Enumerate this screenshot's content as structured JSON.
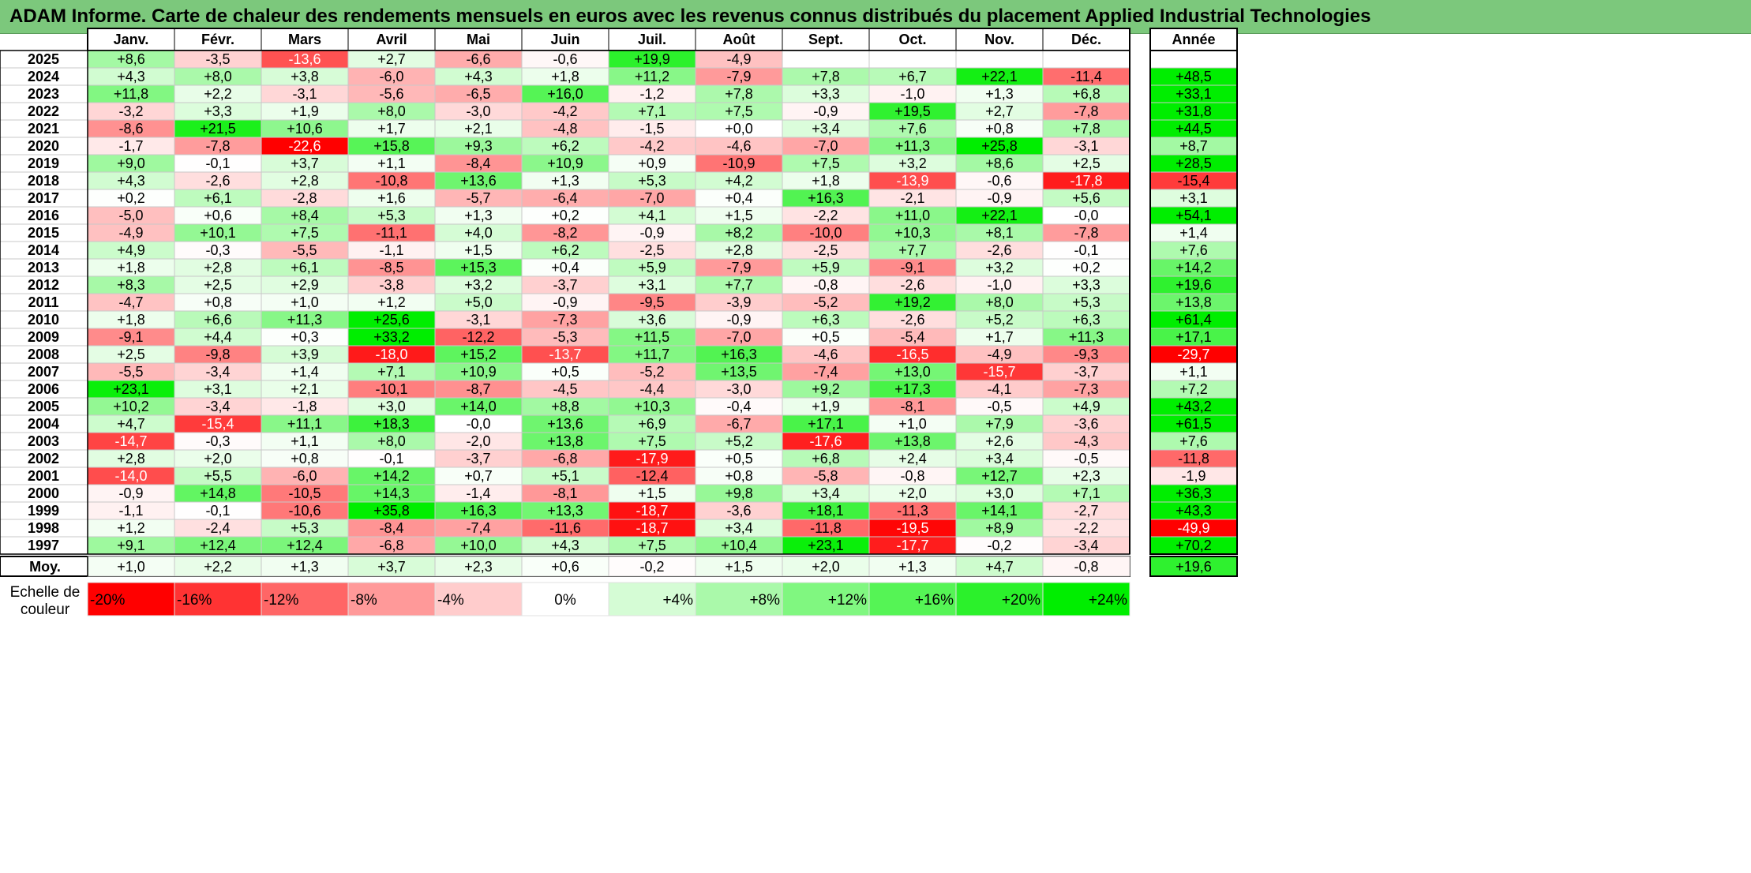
{
  "title": "ADAM Informe. Carte de chaleur des rendements mensuels en euros avec les revenus connus distribués du placement Applied Industrial Technologies",
  "chart_data": {
    "type": "heatmap",
    "months": [
      "Janv.",
      "Févr.",
      "Mars",
      "Avril",
      "Mai",
      "Juin",
      "Juil.",
      "Août",
      "Sept.",
      "Oct.",
      "Nov.",
      "Déc."
    ],
    "year_header": "Année",
    "avg_label": "Moy.",
    "scale_label": "Echelle de couleur",
    "scale": [
      "-20%",
      "-16%",
      "-12%",
      "-8%",
      "-4%",
      "0%",
      "+4%",
      "+8%",
      "+12%",
      "+16%",
      "+20%",
      "+24%"
    ],
    "scale_values": [
      -20,
      -16,
      -12,
      -8,
      -4,
      0,
      4,
      8,
      12,
      16,
      20,
      24
    ],
    "colors": {
      "negative": "#ff0000",
      "neutral": "#ffffff",
      "positive": "#00ee00",
      "title_bg": "#7cc87c"
    },
    "rows": [
      {
        "year": "2025",
        "values": [
          "+8,6",
          "-3,5",
          "-13,6",
          "+2,7",
          "-6,6",
          "-0,6",
          "+19,9",
          "-4,9",
          "",
          "",
          "",
          ""
        ],
        "annual": ""
      },
      {
        "year": "2024",
        "values": [
          "+4,3",
          "+8,0",
          "+3,8",
          "-6,0",
          "+4,3",
          "+1,8",
          "+11,2",
          "-7,9",
          "+7,8",
          "+6,7",
          "+22,1",
          "-11,4"
        ],
        "annual": "+48,5"
      },
      {
        "year": "2023",
        "values": [
          "+11,8",
          "+2,2",
          "-3,1",
          "-5,6",
          "-6,5",
          "+16,0",
          "-1,2",
          "+7,8",
          "+3,3",
          "-1,0",
          "+1,3",
          "+6,8"
        ],
        "annual": "+33,1"
      },
      {
        "year": "2022",
        "values": [
          "-3,2",
          "+3,3",
          "+1,9",
          "+8,0",
          "-3,0",
          "-4,2",
          "+7,1",
          "+7,5",
          "-0,9",
          "+19,5",
          "+2,7",
          "-7,8"
        ],
        "annual": "+31,8"
      },
      {
        "year": "2021",
        "values": [
          "-8,6",
          "+21,5",
          "+10,6",
          "+1,7",
          "+2,1",
          "-4,8",
          "-1,5",
          "+0,0",
          "+3,4",
          "+7,6",
          "+0,8",
          "+7,8"
        ],
        "annual": "+44,5"
      },
      {
        "year": "2020",
        "values": [
          "-1,7",
          "-7,8",
          "-22,6",
          "+15,8",
          "+9,3",
          "+6,2",
          "-4,2",
          "-4,6",
          "-7,0",
          "+11,3",
          "+25,8",
          "-3,1"
        ],
        "annual": "+8,7"
      },
      {
        "year": "2019",
        "values": [
          "+9,0",
          "-0,1",
          "+3,7",
          "+1,1",
          "-8,4",
          "+10,9",
          "+0,9",
          "-10,9",
          "+7,5",
          "+3,2",
          "+8,6",
          "+2,5"
        ],
        "annual": "+28,5"
      },
      {
        "year": "2018",
        "values": [
          "+4,3",
          "-2,6",
          "+2,8",
          "-10,8",
          "+13,6",
          "+1,3",
          "+5,3",
          "+4,2",
          "+1,8",
          "-13,9",
          "-0,6",
          "-17,8"
        ],
        "annual": "-15,4"
      },
      {
        "year": "2017",
        "values": [
          "+0,2",
          "+6,1",
          "-2,8",
          "+1,6",
          "-5,7",
          "-6,4",
          "-7,0",
          "+0,4",
          "+16,3",
          "-2,1",
          "-0,9",
          "+5,6"
        ],
        "annual": "+3,1"
      },
      {
        "year": "2016",
        "values": [
          "-5,0",
          "+0,6",
          "+8,4",
          "+5,3",
          "+1,3",
          "+0,2",
          "+4,1",
          "+1,5",
          "-2,2",
          "+11,0",
          "+22,1",
          "-0,0"
        ],
        "annual": "+54,1"
      },
      {
        "year": "2015",
        "values": [
          "-4,9",
          "+10,1",
          "+7,5",
          "-11,1",
          "+4,0",
          "-8,2",
          "-0,9",
          "+8,2",
          "-10,0",
          "+10,3",
          "+8,1",
          "-7,8"
        ],
        "annual": "+1,4"
      },
      {
        "year": "2014",
        "values": [
          "+4,9",
          "-0,3",
          "-5,5",
          "-1,1",
          "+1,5",
          "+6,2",
          "-2,5",
          "+2,8",
          "-2,5",
          "+7,7",
          "-2,6",
          "-0,1"
        ],
        "annual": "+7,6"
      },
      {
        "year": "2013",
        "values": [
          "+1,8",
          "+2,8",
          "+6,1",
          "-8,5",
          "+15,3",
          "+0,4",
          "+5,9",
          "-7,9",
          "+5,9",
          "-9,1",
          "+3,2",
          "+0,2"
        ],
        "annual": "+14,2"
      },
      {
        "year": "2012",
        "values": [
          "+8,3",
          "+2,5",
          "+2,9",
          "-3,8",
          "+3,2",
          "-3,7",
          "+3,1",
          "+7,7",
          "-0,8",
          "-2,6",
          "-1,0",
          "+3,3"
        ],
        "annual": "+19,6"
      },
      {
        "year": "2011",
        "values": [
          "-4,7",
          "+0,8",
          "+1,0",
          "+1,2",
          "+5,0",
          "-0,9",
          "-9,5",
          "-3,9",
          "-5,2",
          "+19,2",
          "+8,0",
          "+5,3"
        ],
        "annual": "+13,8"
      },
      {
        "year": "2010",
        "values": [
          "+1,8",
          "+6,6",
          "+11,3",
          "+25,6",
          "-3,1",
          "-7,3",
          "+3,6",
          "-0,9",
          "+6,3",
          "-2,6",
          "+5,2",
          "+6,3"
        ],
        "annual": "+61,4"
      },
      {
        "year": "2009",
        "values": [
          "-9,1",
          "+4,4",
          "+0,3",
          "+33,2",
          "-12,2",
          "-5,3",
          "+11,5",
          "-7,0",
          "+0,5",
          "-5,4",
          "+1,7",
          "+11,3"
        ],
        "annual": "+17,1"
      },
      {
        "year": "2008",
        "values": [
          "+2,5",
          "-9,8",
          "+3,9",
          "-18,0",
          "+15,2",
          "-13,7",
          "+11,7",
          "+16,3",
          "-4,6",
          "-16,5",
          "-4,9",
          "-9,3"
        ],
        "annual": "-29,7"
      },
      {
        "year": "2007",
        "values": [
          "-5,5",
          "-3,4",
          "+1,4",
          "+7,1",
          "+10,9",
          "+0,5",
          "-5,2",
          "+13,5",
          "-7,4",
          "+13,0",
          "-15,7",
          "-3,7"
        ],
        "annual": "+1,1"
      },
      {
        "year": "2006",
        "values": [
          "+23,1",
          "+3,1",
          "+2,1",
          "-10,1",
          "-8,7",
          "-4,5",
          "-4,4",
          "-3,0",
          "+9,2",
          "+17,3",
          "-4,1",
          "-7,3"
        ],
        "annual": "+7,2"
      },
      {
        "year": "2005",
        "values": [
          "+10,2",
          "-3,4",
          "-1,8",
          "+3,0",
          "+14,0",
          "+8,8",
          "+10,3",
          "-0,4",
          "+1,9",
          "-8,1",
          "-0,5",
          "+4,9"
        ],
        "annual": "+43,2"
      },
      {
        "year": "2004",
        "values": [
          "+4,7",
          "-15,4",
          "+11,1",
          "+18,3",
          "-0,0",
          "+13,6",
          "+6,9",
          "-6,7",
          "+17,1",
          "+1,0",
          "+7,9",
          "-3,6"
        ],
        "annual": "+61,5"
      },
      {
        "year": "2003",
        "values": [
          "-14,7",
          "-0,3",
          "+1,1",
          "+8,0",
          "-2,0",
          "+13,8",
          "+7,5",
          "+5,2",
          "-17,6",
          "+13,8",
          "+2,6",
          "-4,3"
        ],
        "annual": "+7,6"
      },
      {
        "year": "2002",
        "values": [
          "+2,8",
          "+2,0",
          "+0,8",
          "-0,1",
          "-3,7",
          "-6,8",
          "-17,9",
          "+0,5",
          "+6,8",
          "+2,4",
          "+3,4",
          "-0,5"
        ],
        "annual": "-11,8"
      },
      {
        "year": "2001",
        "values": [
          "-14,0",
          "+5,5",
          "-6,0",
          "+14,2",
          "+0,7",
          "+5,1",
          "-12,4",
          "+0,8",
          "-5,8",
          "-0,8",
          "+12,7",
          "+2,3"
        ],
        "annual": "-1,9"
      },
      {
        "year": "2000",
        "values": [
          "-0,9",
          "+14,8",
          "-10,5",
          "+14,3",
          "-1,4",
          "-8,1",
          "+1,5",
          "+9,8",
          "+3,4",
          "+2,0",
          "+3,0",
          "+7,1"
        ],
        "annual": "+36,3"
      },
      {
        "year": "1999",
        "values": [
          "-1,1",
          "-0,1",
          "-10,6",
          "+35,8",
          "+16,3",
          "+13,3",
          "-18,7",
          "-3,6",
          "+18,1",
          "-11,3",
          "+14,1",
          "-2,7"
        ],
        "annual": "+43,3"
      },
      {
        "year": "1998",
        "values": [
          "+1,2",
          "-2,4",
          "+5,3",
          "-8,4",
          "-7,4",
          "-11,6",
          "-18,7",
          "+3,4",
          "-11,8",
          "-19,5",
          "+8,9",
          "-2,2"
        ],
        "annual": "-49,9"
      },
      {
        "year": "1997",
        "values": [
          "+9,1",
          "+12,4",
          "+12,4",
          "-6,8",
          "+10,0",
          "+4,3",
          "+7,5",
          "+10,4",
          "+23,1",
          "-17,7",
          "-0,2",
          "-3,4"
        ],
        "annual": "+70,2"
      }
    ],
    "average": {
      "values": [
        "+1,0",
        "+2,2",
        "+1,3",
        "+3,7",
        "+2,3",
        "+0,6",
        "-0,2",
        "+1,5",
        "+2,0",
        "+1,3",
        "+4,7",
        "-0,8"
      ],
      "annual": "+19,6"
    }
  }
}
